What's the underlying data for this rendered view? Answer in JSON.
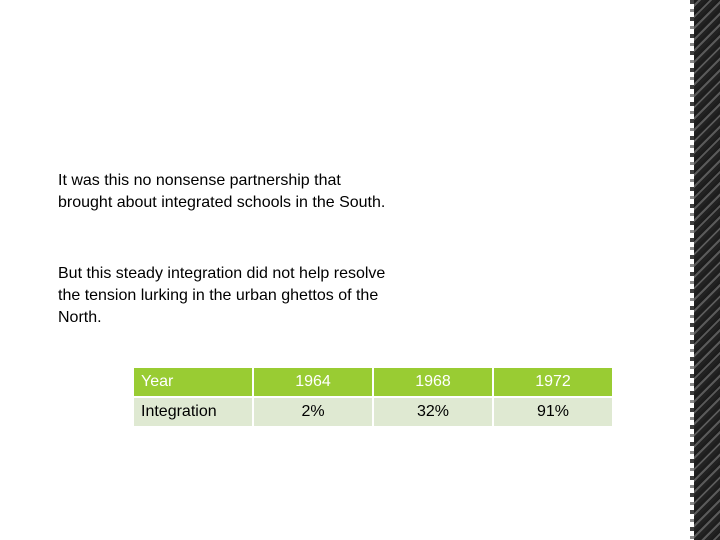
{
  "paragraphs": [
    "It was this no nonsense partnership that brought about integrated schools in the South.",
    "But this steady integration did not help resolve the tension lurking in the urban ghettos of the North."
  ],
  "table": {
    "header": [
      "Year",
      "1964",
      "1968",
      "1972"
    ],
    "row": [
      "Integration",
      "2%",
      "32%",
      "91%"
    ]
  },
  "colors": {
    "header_bg": "#99cc33",
    "row_bg": "#dfe9d2",
    "edge_dark": "#1d1d1d"
  }
}
